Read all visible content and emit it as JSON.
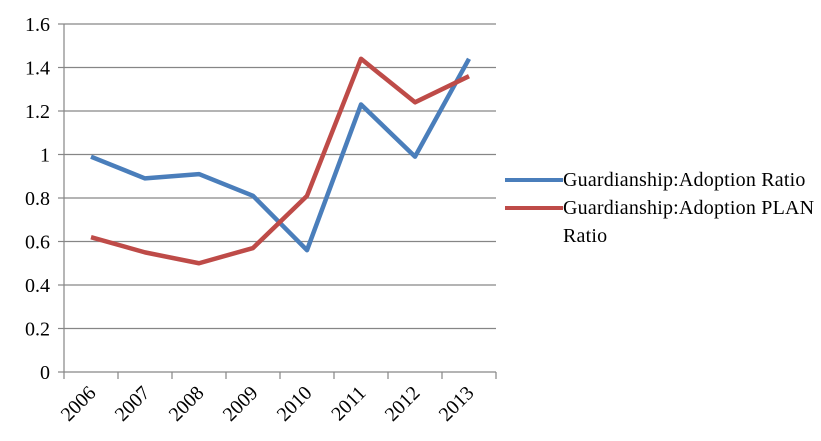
{
  "chart_data": {
    "type": "line",
    "title": "",
    "xlabel": "",
    "ylabel": "",
    "categories": [
      "2006",
      "2007",
      "2008",
      "2009",
      "2010",
      "2011",
      "2012",
      "2013"
    ],
    "ylim": [
      0,
      1.6
    ],
    "yticks": [
      "0",
      "0.2",
      "0.4",
      "0.6",
      "0.8",
      "1",
      "1.2",
      "1.4",
      "1.6"
    ],
    "grid": true,
    "legend_position": "right",
    "series": [
      {
        "name": "Guardianship:Adoption Ratio",
        "color": "#4a7ebb",
        "values": [
          0.99,
          0.89,
          0.91,
          0.81,
          0.56,
          1.23,
          0.99,
          1.44
        ]
      },
      {
        "name": "Guardianship:Adoption PLAN Ratio",
        "color": "#be4b48",
        "values": [
          0.62,
          0.55,
          0.5,
          0.57,
          0.81,
          1.44,
          1.24,
          1.36
        ]
      }
    ]
  }
}
